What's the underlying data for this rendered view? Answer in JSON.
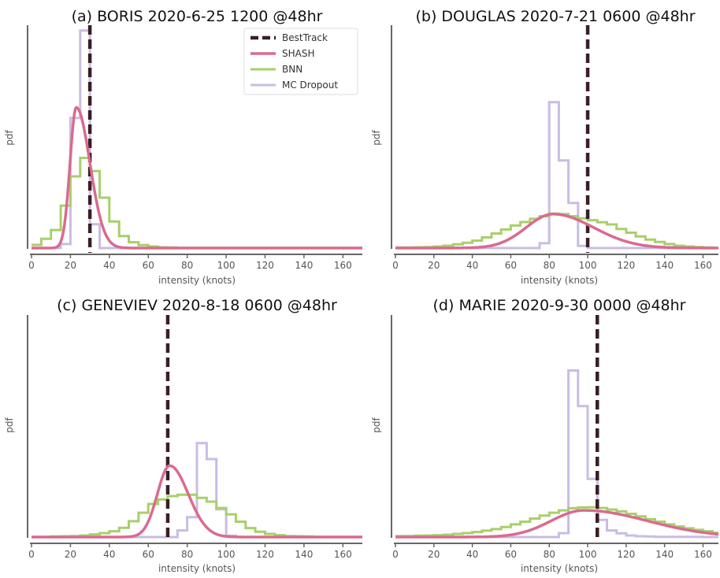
{
  "figure": {
    "legend": {
      "placement": "upper-right of panel (a)",
      "entries": [
        "BestTrack",
        "SHASH",
        "BNN",
        "MC Dropout"
      ]
    },
    "colors": {
      "BestTrack": "#3a1f26",
      "SHASH": "#d96b8e",
      "BNN": "#a8cf6a",
      "MC Dropout": "#c9bce4",
      "axis": "#666666"
    }
  },
  "chart_data": [
    {
      "type": "line",
      "title": "(a) BORIS 2020-6-25 1200 @48hr",
      "xlabel": "intensity (knots)",
      "ylabel": "pdf",
      "xlim": [
        0,
        170
      ],
      "ylim": [
        0,
        0.084
      ],
      "xticks": [
        0,
        20,
        40,
        60,
        80,
        100,
        120,
        140,
        160
      ],
      "bin_width": 5,
      "besttrack": 30,
      "shash": {
        "mode": 23,
        "peak": 0.053,
        "sigma_left": 3.2,
        "sigma_right": 7.0
      },
      "bnn_bin_starts": [
        0,
        5,
        10,
        15,
        20,
        25,
        30,
        35,
        40,
        45,
        50,
        55,
        60,
        65,
        70,
        75,
        80,
        85,
        90,
        95,
        100,
        105,
        110,
        115,
        120,
        125,
        130,
        135,
        140,
        145,
        150,
        155,
        160,
        165
      ],
      "bnn_values": [
        0.0012,
        0.0035,
        0.0068,
        0.016,
        0.027,
        0.034,
        0.029,
        0.019,
        0.01,
        0.0045,
        0.0022,
        0.0011,
        0.0006,
        0.0003,
        0.0002,
        0.0001,
        0.0001,
        0.0001,
        0.0001,
        0.0001,
        0.0001,
        0.0001,
        0.0001,
        0.0001,
        0.0001,
        0.0001,
        0.0001,
        0.0001,
        0.0001,
        0.0001,
        0.0001,
        0.0001,
        0.0001,
        0.0001
      ],
      "mc_bin_starts": [
        0,
        5,
        10,
        15,
        20,
        25,
        30,
        35,
        40,
        45,
        50,
        55,
        60,
        65,
        70,
        75,
        80,
        85,
        90,
        95,
        100,
        105,
        110,
        115,
        120,
        125,
        130,
        135,
        140,
        145,
        150,
        155,
        160,
        165
      ],
      "mc_values": [
        0,
        0,
        0,
        0.0015,
        0.049,
        0.082,
        0.009,
        0,
        0,
        0,
        0,
        0,
        0,
        0,
        0,
        0,
        0,
        0,
        0,
        0,
        0,
        0,
        0,
        0,
        0,
        0,
        0,
        0,
        0,
        0,
        0,
        0,
        0,
        0
      ]
    },
    {
      "type": "line",
      "title": "(b) DOUGLAS 2020-7-21 0600 @48hr",
      "xlabel": "intensity (knots)",
      "ylabel": "pdf",
      "xlim": [
        0,
        168
      ],
      "ylim": [
        0,
        0.084
      ],
      "xticks": [
        0,
        20,
        40,
        60,
        80,
        100,
        120,
        140,
        160
      ],
      "bin_width": 5,
      "besttrack": 100,
      "shash": {
        "mode": 82,
        "peak": 0.0128,
        "sigma_left": 14.0,
        "sigma_right": 21.0
      },
      "bnn_bin_starts": [
        0,
        5,
        10,
        15,
        20,
        25,
        30,
        35,
        40,
        45,
        50,
        55,
        60,
        65,
        70,
        75,
        80,
        85,
        90,
        95,
        100,
        105,
        110,
        115,
        120,
        125,
        130,
        135,
        140,
        145,
        150,
        155,
        160,
        165
      ],
      "bnn_values": [
        0.0002,
        0.0002,
        0.0003,
        0.0004,
        0.0006,
        0.0009,
        0.0014,
        0.002,
        0.0028,
        0.004,
        0.0055,
        0.007,
        0.0085,
        0.0098,
        0.011,
        0.012,
        0.013,
        0.0128,
        0.012,
        0.0112,
        0.0105,
        0.0097,
        0.0089,
        0.0072,
        0.0058,
        0.0044,
        0.0032,
        0.0023,
        0.0015,
        0.0009,
        0.0006,
        0.0004,
        0.0002,
        0.0001
      ],
      "mc_bin_starts": [
        0,
        5,
        10,
        15,
        20,
        25,
        30,
        35,
        40,
        45,
        50,
        55,
        60,
        65,
        70,
        75,
        80,
        85,
        90,
        95,
        100,
        105,
        110,
        115,
        120,
        125,
        130,
        135,
        140,
        145,
        150,
        155,
        160,
        165
      ],
      "mc_values": [
        0,
        0,
        0,
        0,
        0,
        0,
        0,
        0,
        0,
        0,
        0,
        0,
        0,
        0,
        0,
        0.0018,
        0.055,
        0.033,
        0.017,
        0.0008,
        0,
        0,
        0,
        0,
        0,
        0,
        0,
        0,
        0,
        0,
        0,
        0,
        0,
        0
      ]
    },
    {
      "type": "line",
      "title": "(c) GENEVIEV 2020-8-18 0600 @48hr",
      "xlabel": "intensity (knots)",
      "ylabel": "pdf",
      "xlim": [
        0,
        170
      ],
      "ylim": [
        0,
        0.084
      ],
      "xticks": [
        0,
        20,
        40,
        60,
        80,
        100,
        120,
        140,
        160
      ],
      "bin_width": 5,
      "besttrack": 70,
      "shash": {
        "mode": 71,
        "peak": 0.027,
        "sigma_left": 6.3,
        "sigma_right": 9.5
      },
      "bnn_bin_starts": [
        0,
        5,
        10,
        15,
        20,
        25,
        30,
        35,
        40,
        45,
        50,
        55,
        60,
        65,
        70,
        75,
        80,
        85,
        90,
        95,
        100,
        105,
        110,
        115,
        120,
        125,
        130,
        135,
        140,
        145,
        150,
        155,
        160,
        165
      ],
      "bnn_values": [
        0.0001,
        0.0001,
        0.0002,
        0.0003,
        0.0004,
        0.0006,
        0.001,
        0.0015,
        0.0022,
        0.0035,
        0.006,
        0.0092,
        0.0125,
        0.0142,
        0.0155,
        0.016,
        0.016,
        0.0148,
        0.0134,
        0.011,
        0.0086,
        0.0058,
        0.0034,
        0.002,
        0.0012,
        0.0007,
        0.0004,
        0.0003,
        0.0002,
        0.0001,
        0.0001,
        0.0001,
        0.0001,
        0.0001
      ],
      "mc_bin_starts": [
        0,
        5,
        10,
        15,
        20,
        25,
        30,
        35,
        40,
        45,
        50,
        55,
        60,
        65,
        70,
        75,
        80,
        85,
        90,
        95,
        100,
        105,
        110,
        115,
        120,
        125,
        130,
        135,
        140,
        145,
        150,
        155,
        160,
        165
      ],
      "mc_values": [
        0,
        0,
        0,
        0,
        0,
        0,
        0,
        0,
        0,
        0,
        0,
        0,
        0,
        0,
        0,
        0.0025,
        0.0075,
        0.0355,
        0.0295,
        0.0105,
        0.0005,
        0,
        0,
        0,
        0,
        0,
        0,
        0,
        0,
        0,
        0,
        0,
        0,
        0
      ]
    },
    {
      "type": "line",
      "title": "(d) MARIE 2020-9-30 0000 @48hr",
      "xlabel": "intensity (knots)",
      "ylabel": "pdf",
      "xlim": [
        0,
        168
      ],
      "ylim": [
        0,
        0.084
      ],
      "xticks": [
        0,
        20,
        40,
        60,
        80,
        100,
        120,
        140,
        160
      ],
      "bin_width": 5,
      "besttrack": 105,
      "shash": {
        "mode": 98,
        "peak": 0.0101,
        "sigma_left": 17.0,
        "sigma_right": 33.0
      },
      "bnn_bin_starts": [
        0,
        5,
        10,
        15,
        20,
        25,
        30,
        35,
        40,
        45,
        50,
        55,
        60,
        65,
        70,
        75,
        80,
        85,
        90,
        95,
        100,
        105,
        110,
        115,
        120,
        125,
        130,
        135,
        140,
        145,
        150,
        155,
        160,
        165
      ],
      "bnn_values": [
        0.0004,
        0.0004,
        0.0005,
        0.0006,
        0.0007,
        0.0009,
        0.0012,
        0.0015,
        0.0019,
        0.0024,
        0.003,
        0.0038,
        0.0048,
        0.0058,
        0.007,
        0.0081,
        0.0092,
        0.0101,
        0.0109,
        0.0112,
        0.0113,
        0.011,
        0.0104,
        0.0097,
        0.0088,
        0.0078,
        0.0068,
        0.0058,
        0.0048,
        0.004,
        0.0033,
        0.0027,
        0.0022,
        0.0016
      ],
      "mc_bin_starts": [
        0,
        5,
        10,
        15,
        20,
        25,
        30,
        35,
        40,
        45,
        50,
        55,
        60,
        65,
        70,
        75,
        80,
        85,
        90,
        95,
        100,
        105,
        110,
        115,
        120,
        125,
        130,
        135,
        140,
        145,
        150,
        155,
        160,
        165
      ],
      "mc_values": [
        0,
        0,
        0,
        0,
        0,
        0,
        0,
        0,
        0,
        0,
        0,
        0,
        0,
        0,
        0,
        0,
        0,
        0.0015,
        0.063,
        0.0495,
        0.022,
        0.0065,
        0.0025,
        0.0014,
        0.0006,
        0.0003,
        0.0002,
        0.0001,
        0.0001,
        0.0001,
        0.0001,
        0.0001,
        0,
        0
      ]
    }
  ]
}
